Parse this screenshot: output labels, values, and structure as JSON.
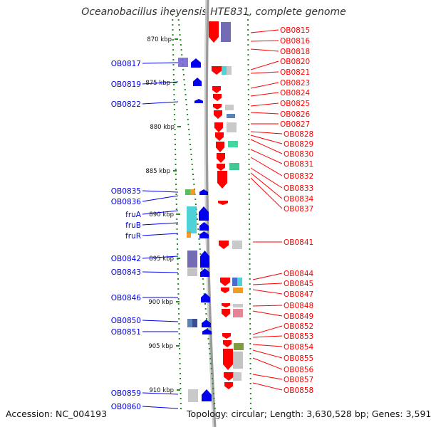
{
  "title": "Oceanobacillus iheyensis HTE831, complete genome",
  "accession": "Accession: NC_004193",
  "summary": "Topology: circular; Length: 3,630,528 bp; Genes: 3,591",
  "colors": {
    "forward": "#0000ee",
    "reverse": "#ff0000",
    "backbone": "#888888",
    "tick": "#228b22"
  },
  "kbp_ticks": [
    "870 kbp",
    "875 kbp",
    "880 kbp",
    "885 kbp",
    "890 kbp",
    "895 kbp",
    "900 kbp",
    "905 kbp",
    "910 kbp"
  ],
  "forward_labels": [
    "OB0817",
    "OB0819",
    "OB0822",
    "OB0835",
    "OB0836",
    "fruA",
    "fruB",
    "fruR",
    "OB0842",
    "OB0843",
    "OB0846",
    "OB0850",
    "OB0851",
    "OB0859",
    "OB0860"
  ],
  "reverse_labels": [
    "OB0815",
    "OB0816",
    "OB0818",
    "OB0820",
    "OB0821",
    "OB0823",
    "OB0824",
    "OB0825",
    "OB0826",
    "OB0827",
    "OB0828",
    "OB0829",
    "OB0830",
    "OB0831",
    "OB0832",
    "OB0833",
    "OB0834",
    "OB0837",
    "OB0841",
    "OB0844",
    "OB0845",
    "OB0847",
    "OB0848",
    "OB0849",
    "OB0852",
    "OB0853",
    "OB0854",
    "OB0855",
    "OB0856",
    "OB0857",
    "OB0858"
  ]
}
